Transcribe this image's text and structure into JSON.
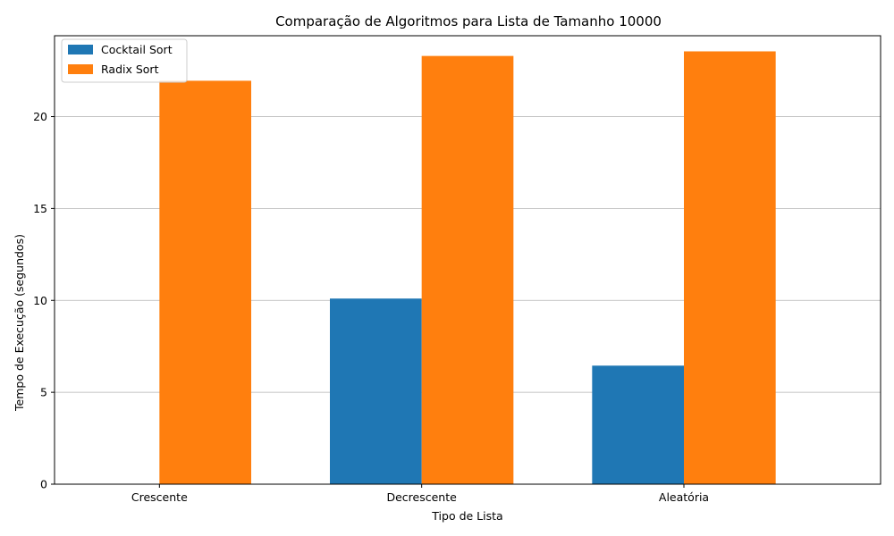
{
  "chart_data": {
    "type": "bar",
    "title": "Comparação de Algoritmos para Lista de Tamanho 10000",
    "xlabel": "Tipo de Lista",
    "ylabel": "Tempo de Execução (segundos)",
    "categories": [
      "Crescente",
      "Decrescente",
      "Aleatória"
    ],
    "series": [
      {
        "name": "Cocktail Sort",
        "values": [
          0.003,
          10.1,
          6.45
        ],
        "color": "#1f77b4"
      },
      {
        "name": "Radix Sort",
        "values": [
          21.95,
          23.3,
          23.55
        ],
        "color": "#ff7f0e"
      }
    ],
    "ylim": [
      0,
      24.4
    ],
    "yticks": [
      0,
      5,
      10,
      15,
      20
    ],
    "grid": "y",
    "legend": "top-left"
  }
}
